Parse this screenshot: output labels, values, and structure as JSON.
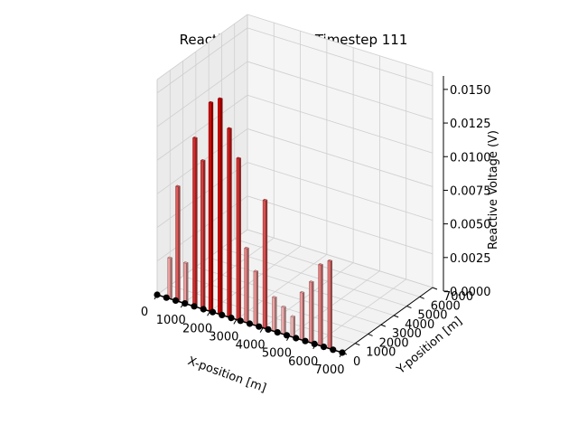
{
  "chart_data": {
    "type": "bar3d",
    "title": "Reactive Voltage at Timestep 111",
    "xlabel": "X-position [m]",
    "ylabel": "Y-position [m]",
    "zlabel": "Reactive Voltage (V)",
    "xlim": [
      0,
      7000
    ],
    "ylim": [
      0,
      7000
    ],
    "zlim": [
      0,
      0.016
    ],
    "x_ticks": [
      "0",
      "1000",
      "2000",
      "3000",
      "4000",
      "5000",
      "6000",
      "7000"
    ],
    "y_ticks": [
      "0",
      "1000",
      "2000",
      "3000",
      "4000",
      "5000",
      "6000",
      "7000"
    ],
    "z_ticks": [
      "0.0000",
      "0.0025",
      "0.0050",
      "0.0075",
      "0.0100",
      "0.0125",
      "0.0150"
    ],
    "grid": true,
    "colors": {
      "bar_max": "#cc0000",
      "bar_min": "#f2c4c4",
      "node": "#000000"
    },
    "bars": [
      {
        "x": 400,
        "y": 0,
        "v": 0.003
      },
      {
        "x": 700,
        "y": 0,
        "v": 0.0085
      },
      {
        "x": 1000,
        "y": 0,
        "v": 0.003
      },
      {
        "x": 1350,
        "y": 0,
        "v": 0.0125
      },
      {
        "x": 1650,
        "y": 0,
        "v": 0.011
      },
      {
        "x": 1950,
        "y": 0,
        "v": 0.0155
      },
      {
        "x": 2300,
        "y": 0,
        "v": 0.016
      },
      {
        "x": 2650,
        "y": 0,
        "v": 0.014
      },
      {
        "x": 3000,
        "y": 0,
        "v": 0.012
      },
      {
        "x": 3300,
        "y": 0,
        "v": 0.0055
      },
      {
        "x": 3650,
        "y": 0,
        "v": 0.004
      },
      {
        "x": 4000,
        "y": 0,
        "v": 0.0095
      },
      {
        "x": 4350,
        "y": 0,
        "v": 0.0025
      },
      {
        "x": 4700,
        "y": 0,
        "v": 0.002
      },
      {
        "x": 5050,
        "y": 0,
        "v": 0.0015
      },
      {
        "x": 5400,
        "y": 0,
        "v": 0.0035
      },
      {
        "x": 5750,
        "y": 0,
        "v": 0.0045
      },
      {
        "x": 6100,
        "y": 0,
        "v": 0.006
      },
      {
        "x": 6450,
        "y": 0,
        "v": 0.0065
      }
    ],
    "nodes_x": [
      0,
      350,
      700,
      1050,
      1400,
      1750,
      2100,
      2450,
      2800,
      3150,
      3500,
      3850,
      4200,
      4550,
      4900,
      5250,
      5600,
      5950,
      6300,
      6650,
      7000
    ]
  }
}
